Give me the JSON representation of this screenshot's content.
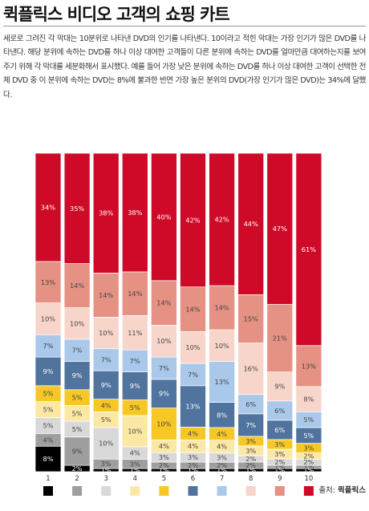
{
  "header": {
    "title": "퀵플릭스 비디오 고객의 쇼핑 카트",
    "description": "세로로 그려진 각 막대는 10분위로 나타낸 DVD의 인기를 나타낸다. 10이라고 적힌 막대는 가장 인기가 많은 DVD를 나타낸다. 해당 분위에 속하는 DVD를 하나 이상 대여한 고객들이 다른 분위에 속하는 DVD를 얼마만큼 대여하는지를 보여 주기 위해 각 막대를 세분화해서 표시했다. 예를 들어 가장 낮은 분위에 속하는 DVD를 하나 이상 대여한 고객이 선택한 전체 DVD 중 이 분위에 속하는 DVD는 8%에 불과한 반면 가장 높은 분위의 DVD(가장 인기가 많은 DVD)는 34%에 달했다."
  },
  "source": {
    "label": "출처:",
    "name": "퀵플릭스"
  },
  "chart_data": {
    "type": "bar",
    "stacked": true,
    "categories": [
      "1",
      "2",
      "3",
      "4",
      "5",
      "6",
      "7",
      "8",
      "9",
      "10"
    ],
    "series": [
      {
        "name": "1",
        "color": "#000000",
        "values": [
          8,
          2,
          1,
          1,
          1,
          1,
          1,
          1,
          1,
          1
        ]
      },
      {
        "name": "2",
        "color": "#9e9e9e",
        "values": [
          4,
          9,
          3,
          3,
          2,
          2,
          2,
          2,
          1,
          1
        ]
      },
      {
        "name": "3",
        "color": "#d9d9d9",
        "values": [
          5,
          5,
          10,
          4,
          3,
          3,
          3,
          2,
          2,
          2
        ]
      },
      {
        "name": "4",
        "color": "#fbe8a4",
        "values": [
          5,
          5,
          5,
          10,
          4,
          4,
          4,
          3,
          3,
          2
        ]
      },
      {
        "name": "5",
        "color": "#f7c825",
        "values": [
          5,
          5,
          4,
          5,
          10,
          4,
          4,
          3,
          3,
          3
        ]
      },
      {
        "name": "6",
        "color": "#50749e",
        "values": [
          9,
          9,
          9,
          9,
          9,
          13,
          8,
          7,
          6,
          5
        ]
      },
      {
        "name": "7",
        "color": "#a9c8ea",
        "values": [
          7,
          7,
          7,
          7,
          7,
          7,
          13,
          6,
          6,
          5
        ]
      },
      {
        "name": "8",
        "color": "#f8d5cb",
        "values": [
          10,
          10,
          10,
          11,
          10,
          10,
          10,
          16,
          9,
          8
        ]
      },
      {
        "name": "9",
        "color": "#e59183",
        "values": [
          13,
          14,
          14,
          14,
          14,
          14,
          14,
          15,
          21,
          13
        ]
      },
      {
        "name": "10",
        "color": "#cf0a28",
        "values": [
          34,
          35,
          38,
          38,
          40,
          42,
          42,
          44,
          47,
          61
        ]
      }
    ],
    "label_colors": [
      "#ffffff",
      "#444444",
      "#444444",
      "#444444",
      "#444444",
      "#ffffff",
      "#444444",
      "#444444",
      "#444444",
      "#ffffff"
    ],
    "legend_position": "bottom",
    "grid": false
  }
}
